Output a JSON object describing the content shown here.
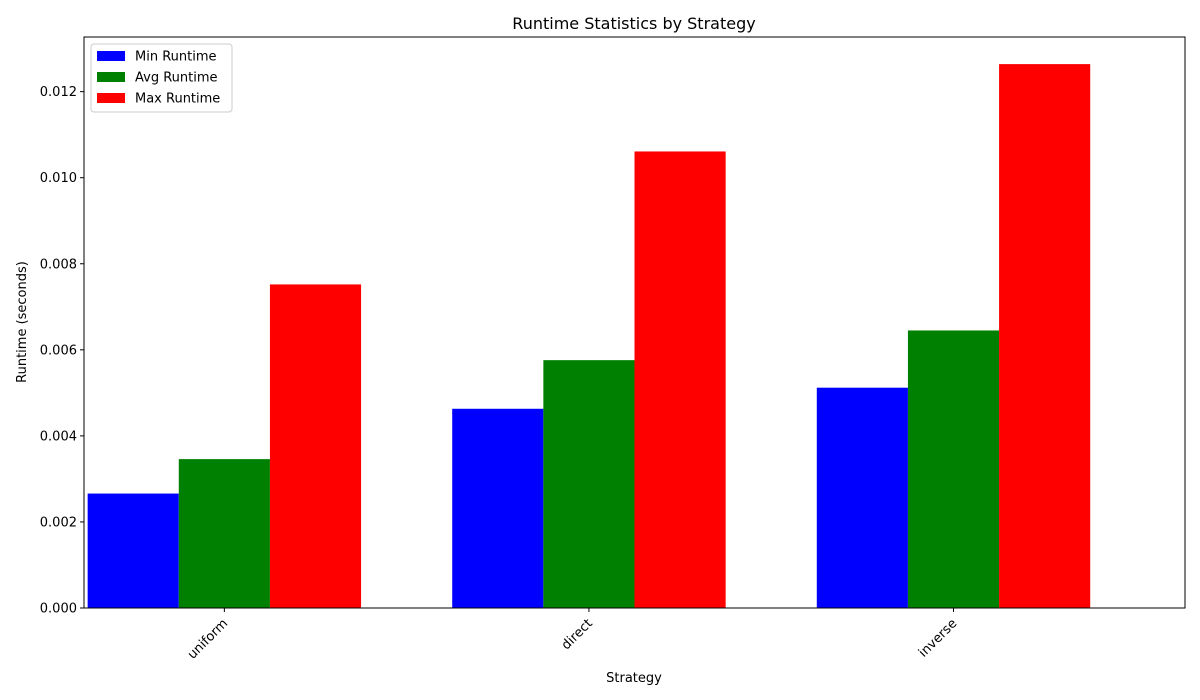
{
  "chart_data": {
    "type": "bar",
    "title": "Runtime Statistics by Strategy",
    "xlabel": "Strategy",
    "ylabel": "Runtime (seconds)",
    "categories": [
      "uniform",
      "direct",
      "inverse"
    ],
    "series": [
      {
        "name": "Min Runtime",
        "color": "#0000ff",
        "values": [
          0.00266,
          0.00463,
          0.00512
        ]
      },
      {
        "name": "Avg Runtime",
        "color": "#008000",
        "values": [
          0.00346,
          0.00576,
          0.00645
        ]
      },
      {
        "name": "Max Runtime",
        "color": "#ff0000",
        "values": [
          0.00752,
          0.01061,
          0.01264
        ]
      }
    ],
    "ylim": [
      0,
      0.01327
    ],
    "yticks": [
      0.0,
      0.002,
      0.004,
      0.006,
      0.008,
      0.01,
      0.012
    ],
    "ytick_labels": [
      "0.000",
      "0.002",
      "0.004",
      "0.006",
      "0.008",
      "0.010",
      "0.012"
    ],
    "grid": false,
    "legend_position": "top-left",
    "xtick_rotation": 45
  }
}
